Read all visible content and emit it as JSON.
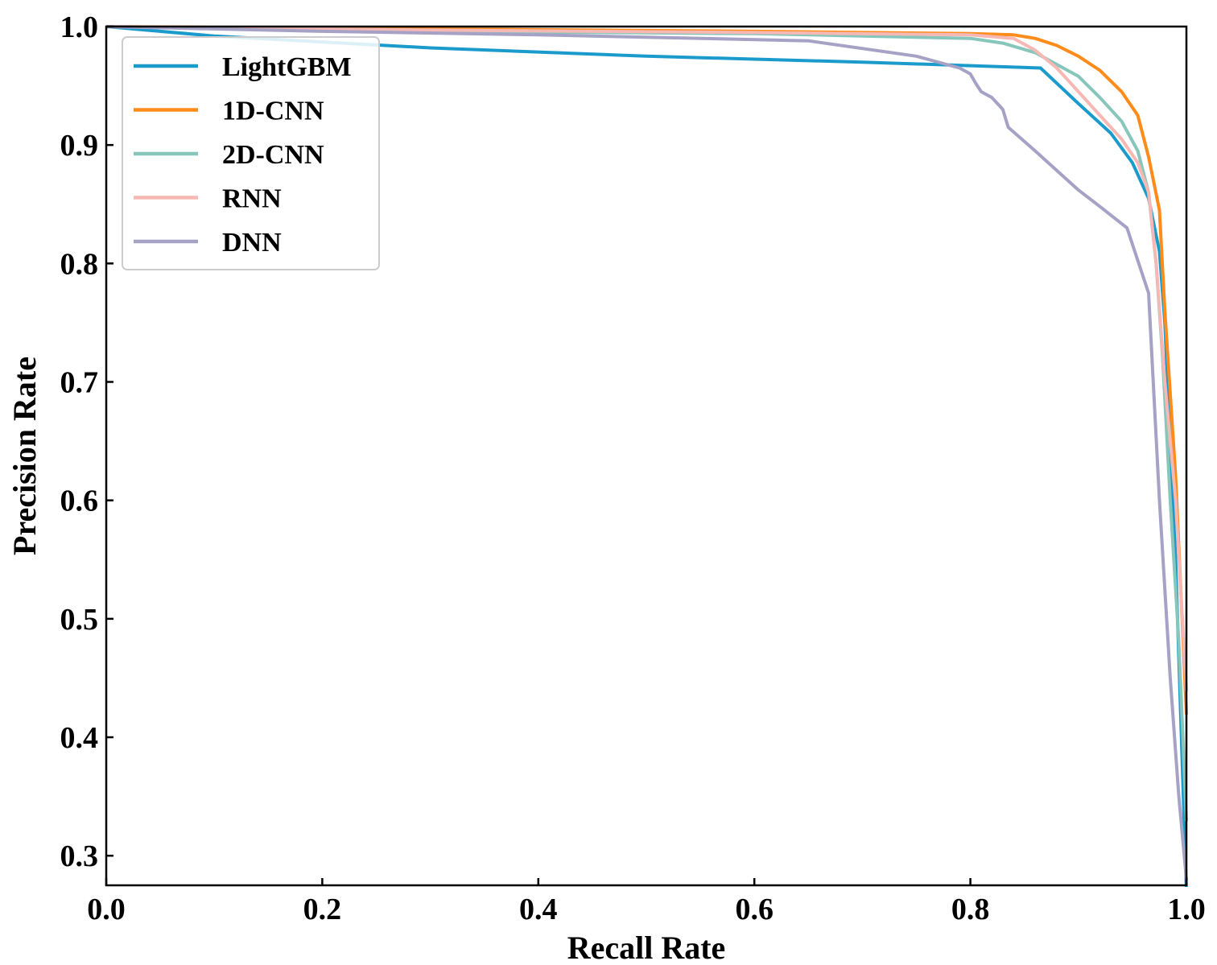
{
  "chart_data": {
    "type": "line",
    "title": "",
    "xlabel": "Recall Rate",
    "ylabel": "Precision Rate",
    "xlim": [
      0.0,
      1.0
    ],
    "ylim": [
      0.275,
      1.0
    ],
    "xticks": [
      0.0,
      0.2,
      0.4,
      0.6,
      0.8,
      1.0
    ],
    "xtick_labels": [
      "0.0",
      "0.2",
      "0.4",
      "0.6",
      "0.8",
      "1.0"
    ],
    "yticks": [
      0.3,
      0.4,
      0.5,
      0.6,
      0.7,
      0.8,
      0.9,
      1.0
    ],
    "ytick_labels": [
      "0.3",
      "0.4",
      "0.5",
      "0.6",
      "0.7",
      "0.8",
      "0.9",
      "1.0"
    ],
    "grid": false,
    "legend_position": "top-left",
    "series": [
      {
        "name": "LightGBM",
        "color": "#1a9bcb",
        "x": [
          0.0,
          0.1,
          0.3,
          0.5,
          0.7,
          0.8,
          0.865,
          0.9,
          0.93,
          0.95,
          0.965,
          0.975,
          0.98,
          0.99,
          1.0
        ],
        "y": [
          1.0,
          0.992,
          0.982,
          0.975,
          0.97,
          0.967,
          0.965,
          0.935,
          0.91,
          0.885,
          0.855,
          0.81,
          0.75,
          0.55,
          0.27
        ]
      },
      {
        "name": "1D-CNN",
        "color": "#ff8c1a",
        "x": [
          0.0,
          0.3,
          0.6,
          0.8,
          0.84,
          0.86,
          0.88,
          0.9,
          0.92,
          0.94,
          0.955,
          0.965,
          0.975,
          0.98,
          0.99,
          1.0
        ],
        "y": [
          1.0,
          0.998,
          0.996,
          0.994,
          0.993,
          0.99,
          0.984,
          0.975,
          0.963,
          0.945,
          0.925,
          0.89,
          0.845,
          0.76,
          0.62,
          0.42
        ]
      },
      {
        "name": "2D-CNN",
        "color": "#86c6bb",
        "x": [
          0.0,
          0.3,
          0.6,
          0.8,
          0.83,
          0.86,
          0.88,
          0.9,
          0.92,
          0.94,
          0.955,
          0.965,
          0.972,
          0.978,
          0.985,
          0.993,
          1.0
        ],
        "y": [
          1.0,
          0.996,
          0.994,
          0.99,
          0.986,
          0.978,
          0.968,
          0.958,
          0.94,
          0.92,
          0.895,
          0.86,
          0.8,
          0.72,
          0.6,
          0.48,
          0.33
        ]
      },
      {
        "name": "RNN",
        "color": "#f5b8b4",
        "x": [
          0.0,
          0.3,
          0.6,
          0.8,
          0.84,
          0.86,
          0.88,
          0.9,
          0.92,
          0.94,
          0.955,
          0.965,
          0.972,
          0.98,
          0.99,
          1.0
        ],
        "y": [
          1.0,
          0.997,
          0.995,
          0.993,
          0.99,
          0.98,
          0.965,
          0.945,
          0.925,
          0.905,
          0.885,
          0.86,
          0.8,
          0.7,
          0.6,
          0.44
        ]
      },
      {
        "name": "DNN",
        "color": "#a5a2c6",
        "x": [
          0.0,
          0.2,
          0.4,
          0.65,
          0.75,
          0.79,
          0.8,
          0.805,
          0.81,
          0.82,
          0.83,
          0.835,
          0.86,
          0.9,
          0.92,
          0.945,
          0.965,
          0.975,
          0.985,
          0.993,
          1.0
        ],
        "y": [
          1.0,
          0.996,
          0.993,
          0.988,
          0.975,
          0.965,
          0.96,
          0.952,
          0.945,
          0.94,
          0.93,
          0.915,
          0.895,
          0.862,
          0.848,
          0.83,
          0.775,
          0.6,
          0.45,
          0.35,
          0.28
        ]
      }
    ]
  }
}
